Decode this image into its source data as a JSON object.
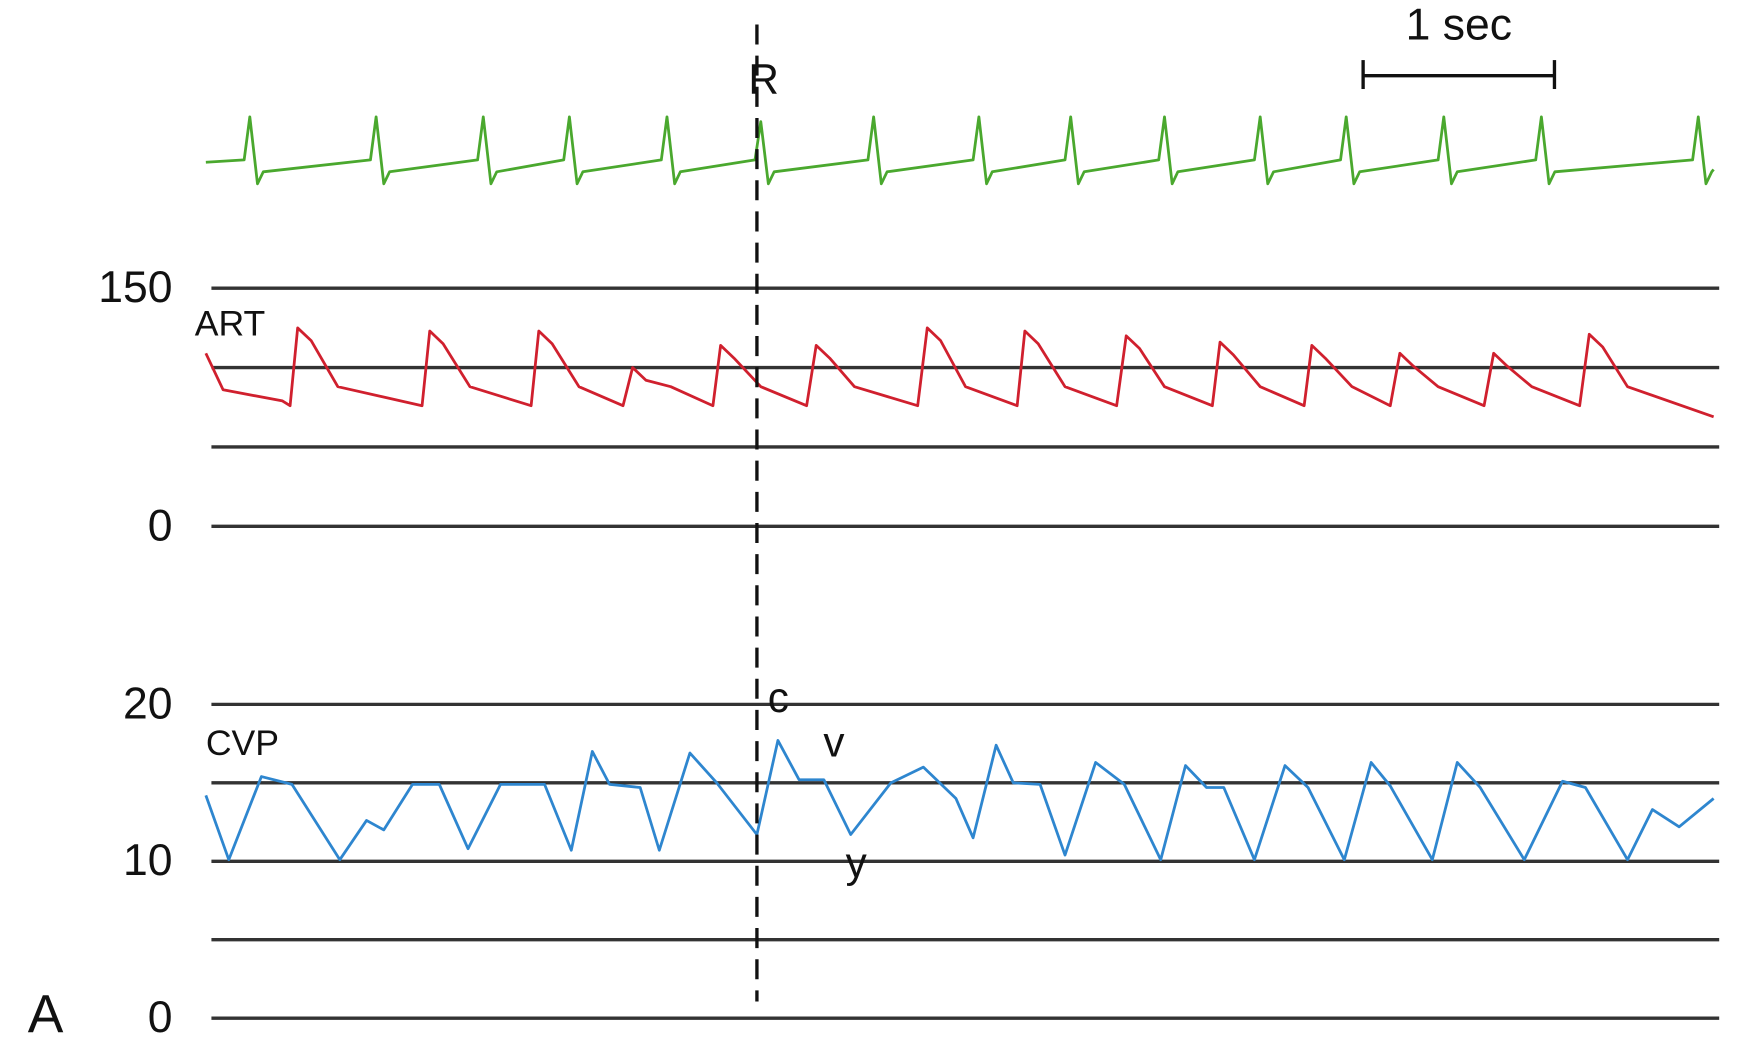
{
  "panel_label": "A",
  "scale_bar": {
    "label": "1 sec",
    "length": 1
  },
  "marker": {
    "label": "R",
    "x": 2.88
  },
  "chart_data": [
    {
      "type": "line",
      "color": "#4aa82e",
      "xlim": [
        0,
        7.88
      ],
      "ylim": [
        -0.5,
        1.2
      ],
      "x": [
        0,
        0.2,
        0.23,
        0.27,
        0.3,
        0.86,
        0.89,
        0.93,
        0.96,
        1.42,
        1.45,
        1.49,
        1.52,
        1.87,
        1.9,
        1.94,
        1.97,
        2.38,
        2.41,
        2.45,
        2.48,
        2.87,
        2.9,
        2.94,
        2.97,
        3.46,
        3.49,
        3.53,
        3.56,
        4.01,
        4.04,
        4.08,
        4.11,
        4.49,
        4.52,
        4.56,
        4.59,
        4.98,
        5.01,
        5.05,
        5.08,
        5.48,
        5.51,
        5.55,
        5.58,
        5.93,
        5.96,
        6.0,
        6.03,
        6.44,
        6.47,
        6.51,
        6.54,
        6.95,
        6.98,
        7.02,
        7.05,
        7.77,
        7.8,
        7.84,
        7.87,
        7.88
      ],
      "values": [
        0.05,
        0.1,
        1.0,
        -0.4,
        -0.15,
        0.1,
        1.0,
        -0.4,
        -0.15,
        0.1,
        1.0,
        -0.4,
        -0.15,
        0.1,
        1.0,
        -0.4,
        -0.15,
        0.1,
        1.0,
        -0.4,
        -0.15,
        0.1,
        0.9,
        -0.4,
        -0.15,
        0.1,
        1.0,
        -0.4,
        -0.15,
        0.1,
        1.0,
        -0.4,
        -0.15,
        0.1,
        1.0,
        -0.4,
        -0.15,
        0.1,
        1.0,
        -0.4,
        -0.15,
        0.1,
        1.0,
        -0.4,
        -0.15,
        0.1,
        1.0,
        -0.4,
        -0.15,
        0.1,
        1.0,
        -0.4,
        -0.15,
        0.1,
        1.0,
        -0.4,
        -0.15,
        0.1,
        1.0,
        -0.4,
        -0.15,
        -0.1
      ]
    },
    {
      "type": "line",
      "label": "ART",
      "color": "#d0202e",
      "xlim": [
        0,
        7.88
      ],
      "ylim": [
        0,
        150
      ],
      "yticks": [
        0,
        150
      ],
      "grid_values": [
        0,
        50,
        100,
        150
      ],
      "x": [
        0,
        0.09,
        0.4,
        0.44,
        0.48,
        0.55,
        0.69,
        1.13,
        1.17,
        1.24,
        1.38,
        1.7,
        1.74,
        1.81,
        1.95,
        2.18,
        2.23,
        2.3,
        2.43,
        2.65,
        2.69,
        2.76,
        2.9,
        3.14,
        3.19,
        3.26,
        3.39,
        3.72,
        3.77,
        3.84,
        3.97,
        4.24,
        4.28,
        4.35,
        4.49,
        4.76,
        4.81,
        4.88,
        5.01,
        5.26,
        5.3,
        5.37,
        5.51,
        5.74,
        5.78,
        5.85,
        5.99,
        6.19,
        6.24,
        6.31,
        6.44,
        6.68,
        6.73,
        6.8,
        6.93,
        7.18,
        7.23,
        7.3,
        7.43,
        7.88
      ],
      "values": [
        109,
        86,
        79,
        76,
        125,
        117,
        88,
        76,
        123,
        115,
        88,
        76,
        123,
        115,
        88,
        76,
        100,
        92,
        88,
        76,
        114,
        106,
        88,
        76,
        114,
        106,
        88,
        76,
        125,
        117,
        88,
        76,
        123,
        115,
        88,
        76,
        120,
        112,
        88,
        76,
        116,
        108,
        88,
        76,
        114,
        106,
        88,
        76,
        109,
        101,
        88,
        76,
        109,
        101,
        88,
        76,
        121,
        113,
        88,
        69
      ]
    },
    {
      "type": "line",
      "label": "CVP",
      "color": "#2e86cf",
      "xlim": [
        0,
        7.88
      ],
      "ylim": [
        0,
        20
      ],
      "yticks": [
        0,
        10,
        20
      ],
      "grid_values": [
        0,
        5,
        10,
        15,
        20
      ],
      "annotations": [
        "c",
        "v",
        "y"
      ],
      "x": [
        0.0,
        0.12,
        0.29,
        0.45,
        0.7,
        0.84,
        0.93,
        1.08,
        1.22,
        1.37,
        1.54,
        1.77,
        1.91,
        2.02,
        2.11,
        2.27,
        2.37,
        2.53,
        2.67,
        2.88,
        2.99,
        3.1,
        3.23,
        3.37,
        3.58,
        3.75,
        3.92,
        4.01,
        4.13,
        4.22,
        4.36,
        4.49,
        4.65,
        4.8,
        4.99,
        5.12,
        5.23,
        5.32,
        5.48,
        5.64,
        5.76,
        5.95,
        6.09,
        6.19,
        6.41,
        6.54,
        6.66,
        6.89,
        7.09,
        7.21,
        7.43,
        7.56,
        7.7,
        7.88
      ],
      "values": [
        14.2,
        10.1,
        15.4,
        14.9,
        10.1,
        12.6,
        12.0,
        14.9,
        14.9,
        10.8,
        14.9,
        14.9,
        10.7,
        17.0,
        14.9,
        14.7,
        10.7,
        16.9,
        15.0,
        11.7,
        17.7,
        15.2,
        15.2,
        11.7,
        15.0,
        16.0,
        14.0,
        11.5,
        17.4,
        15.0,
        14.9,
        10.4,
        16.3,
        14.9,
        10.1,
        16.1,
        14.7,
        14.7,
        10.1,
        16.1,
        14.7,
        10.1,
        16.3,
        14.8,
        10.1,
        16.3,
        14.7,
        10.1,
        15.1,
        14.7,
        10.1,
        13.3,
        12.2,
        14.0
      ]
    }
  ]
}
